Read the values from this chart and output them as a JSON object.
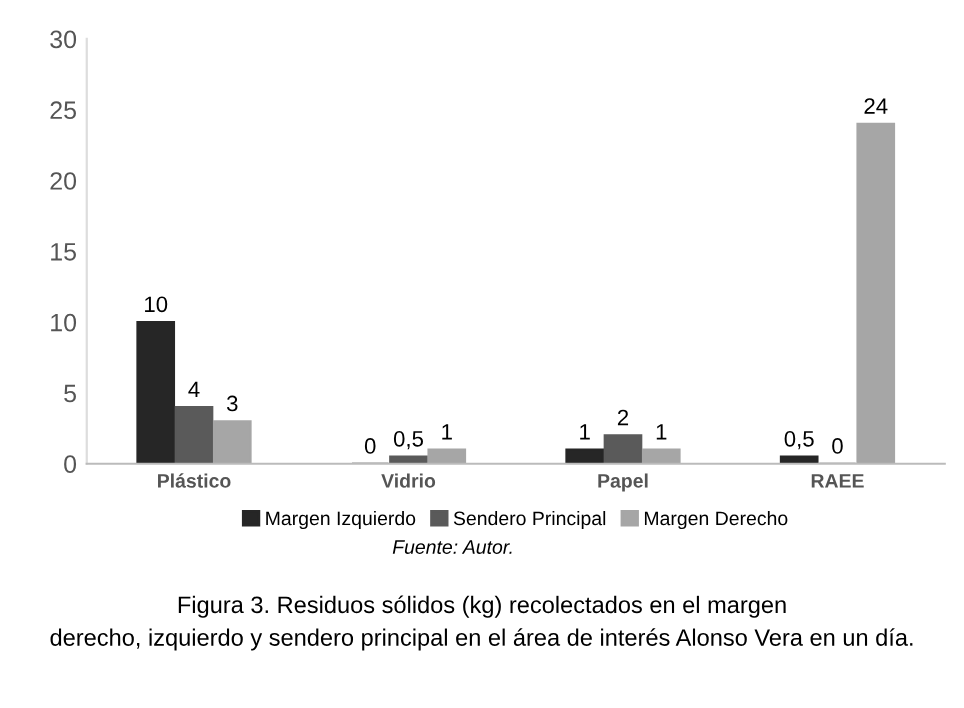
{
  "chart_data": {
    "type": "bar",
    "categories": [
      "Plástico",
      "Vidrio",
      "Papel",
      "RAEE"
    ],
    "series": [
      {
        "name": "Margen Izquierdo",
        "color": "#262626",
        "values": [
          10,
          0,
          1,
          0.5
        ],
        "value_labels": [
          "10",
          "0",
          "1",
          "0,5"
        ]
      },
      {
        "name": "Sendero Principal",
        "color": "#5a5a5a",
        "values": [
          4,
          0.5,
          2,
          0
        ],
        "value_labels": [
          "4",
          "0,5",
          "2",
          "0"
        ]
      },
      {
        "name": "Margen Derecho",
        "color": "#a6a6a6",
        "values": [
          3,
          1,
          1,
          24
        ],
        "value_labels": [
          "3",
          "1",
          "1",
          "24"
        ]
      }
    ],
    "ylim": [
      0,
      30
    ],
    "yticks": [
      0,
      5,
      10,
      15,
      20,
      25,
      30
    ],
    "grid": false,
    "legend": "bottom",
    "annotations": [
      "Fuente: Autor.",
      "Figura 3. Residuos sólidos (kg) recolectados en el margen\nderecho, izquierdo y sendero principal en el área de interés Alonso Vera en un día."
    ]
  }
}
